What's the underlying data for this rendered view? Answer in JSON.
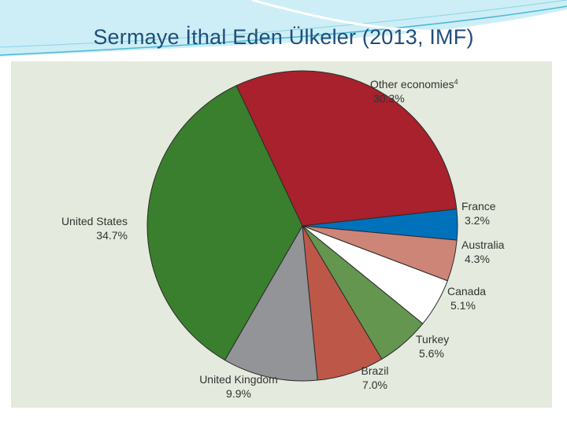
{
  "title": "Sermaye İthal Eden Ülkeler (2013, IMF)",
  "colors": {
    "title": "#1f4e79",
    "panel": "#e4eadd",
    "swoosh": "#4bb8d8"
  },
  "chart_data": {
    "type": "pie",
    "title": "",
    "start_angle_deg": 334.8,
    "direction": "clockwise",
    "slices": [
      {
        "label": "Other economies",
        "footnote": "4",
        "value": 30.3,
        "value_label": "30.3%",
        "color": "#a8212d",
        "anchor": "start"
      },
      {
        "label": "France",
        "value": 3.2,
        "value_label": "3.2%",
        "color": "#0072bc",
        "anchor": "start"
      },
      {
        "label": "Australia",
        "value": 4.3,
        "value_label": "4.3%",
        "color": "#cd8577",
        "anchor": "start"
      },
      {
        "label": "Canada",
        "value": 5.1,
        "value_label": "5.1%",
        "color": "#ffffff",
        "anchor": "start"
      },
      {
        "label": "Turkey",
        "value": 5.6,
        "value_label": "5.6%",
        "color": "#64964f",
        "anchor": "start"
      },
      {
        "label": "Brazil",
        "value": 7.0,
        "value_label": "7.0%",
        "color": "#bd5849",
        "anchor": "middle"
      },
      {
        "label": "United Kingdom",
        "value": 9.9,
        "value_label": "9.9%",
        "color": "#929497",
        "anchor": "middle"
      },
      {
        "label": "United States",
        "value": 34.7,
        "value_label": "34.7%",
        "color": "#3a7f2d",
        "anchor": "end"
      }
    ]
  }
}
